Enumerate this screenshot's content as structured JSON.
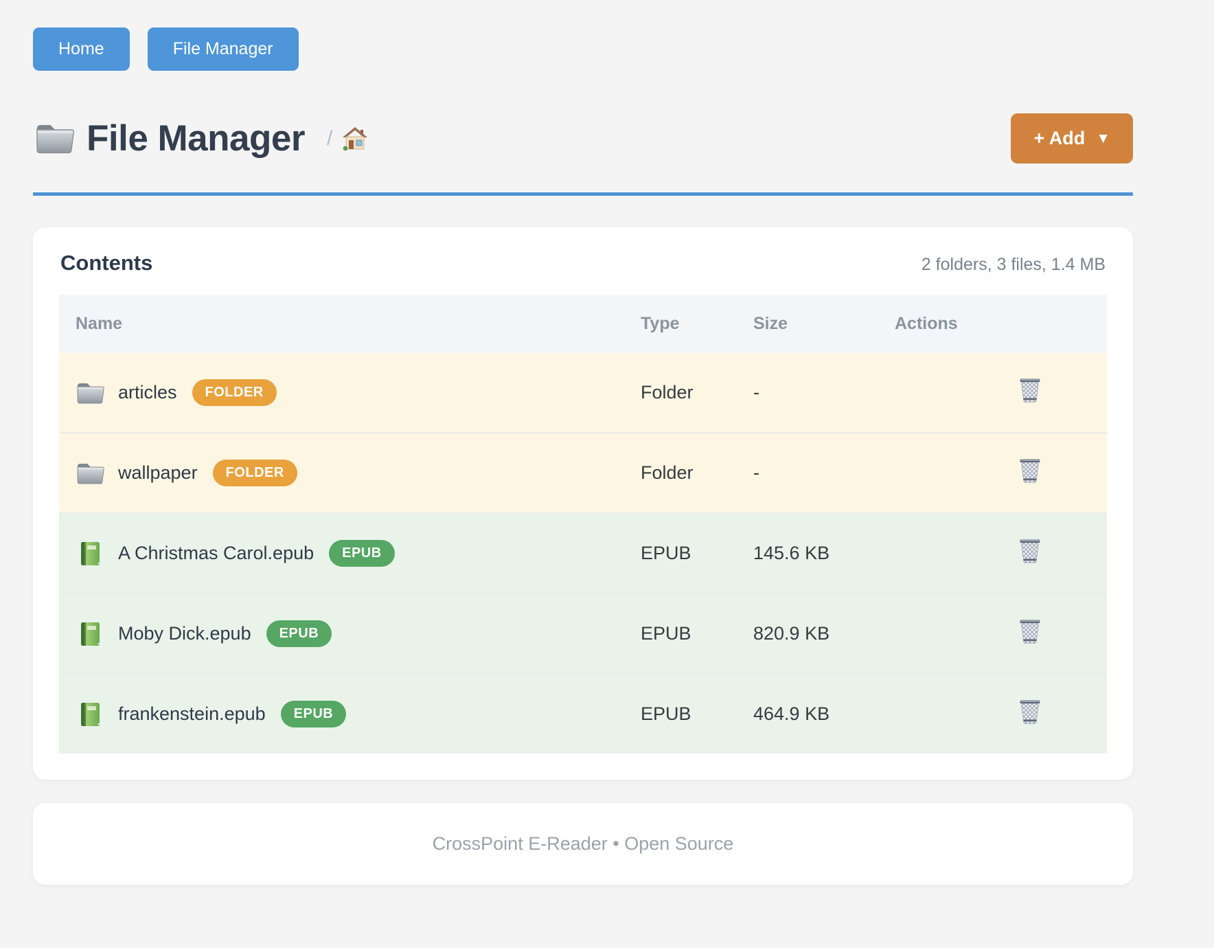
{
  "colors": {
    "accent_blue": "#4e95d9",
    "accent_orange": "#d1823c",
    "badge_orange": "#e9a23c",
    "badge_green": "#55a763",
    "folder_row_bg": "#fdf6e2",
    "file_row_bg": "#e9f3ea"
  },
  "nav": {
    "items": [
      {
        "label": "Home"
      },
      {
        "label": "File Manager"
      }
    ]
  },
  "header": {
    "title": "File Manager",
    "title_icon": "folder-icon",
    "breadcrumb_separator": "/",
    "breadcrumb_home_icon": "house-icon",
    "add_button": {
      "label": "+ Add",
      "caret": "▼"
    }
  },
  "contents": {
    "heading": "Contents",
    "summary": "2 folders, 3 files, 1.4 MB",
    "columns": [
      "Name",
      "Type",
      "Size",
      "Actions"
    ],
    "rows": [
      {
        "icon": "folder-icon",
        "name": "articles",
        "badge": "FOLDER",
        "kind": "folder",
        "type": "Folder",
        "size": "-",
        "action_icon": "trash-icon"
      },
      {
        "icon": "folder-icon",
        "name": "wallpaper",
        "badge": "FOLDER",
        "kind": "folder",
        "type": "Folder",
        "size": "-",
        "action_icon": "trash-icon"
      },
      {
        "icon": "book-icon",
        "name": "A Christmas Carol.epub",
        "badge": "EPUB",
        "kind": "file",
        "type": "EPUB",
        "size": "145.6 KB",
        "action_icon": "trash-icon"
      },
      {
        "icon": "book-icon",
        "name": "Moby Dick.epub",
        "badge": "EPUB",
        "kind": "file",
        "type": "EPUB",
        "size": "820.9 KB",
        "action_icon": "trash-icon"
      },
      {
        "icon": "book-icon",
        "name": "frankenstein.epub",
        "badge": "EPUB",
        "kind": "file",
        "type": "EPUB",
        "size": "464.9 KB",
        "action_icon": "trash-icon"
      }
    ]
  },
  "footer": {
    "text": "CrossPoint E-Reader • Open Source"
  }
}
